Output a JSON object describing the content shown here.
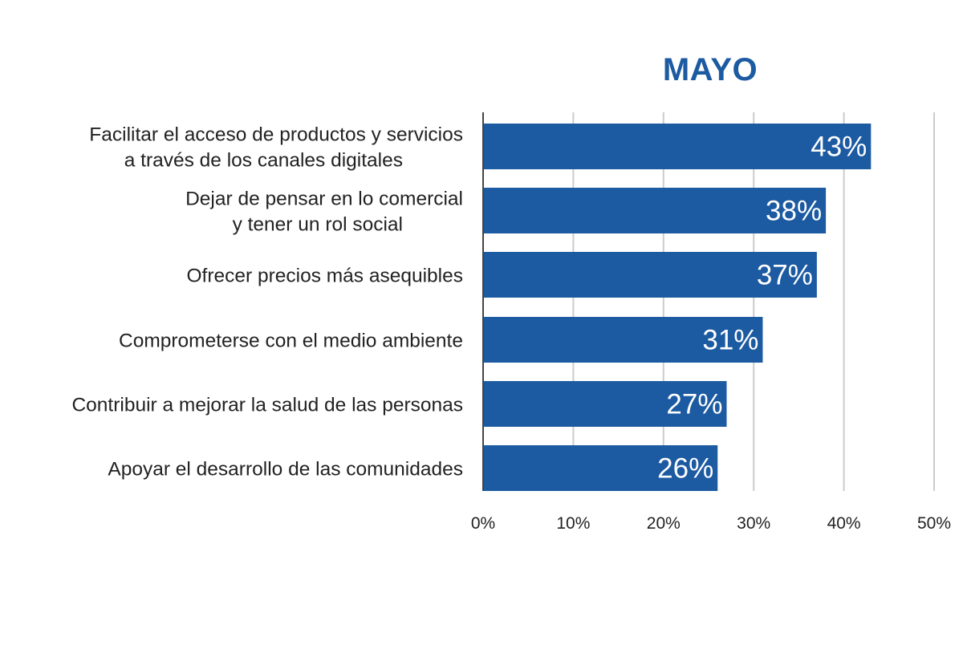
{
  "chart_data": {
    "type": "bar",
    "orientation": "horizontal",
    "title": "MAYO",
    "categories": [
      [
        "Facilitar el acceso de productos y servicios",
        "a través de los canales digitales"
      ],
      [
        "Dejar de pensar en lo comercial",
        "y tener un rol social"
      ],
      [
        "Ofrecer precios más asequibles"
      ],
      [
        "Comprometerse con el medio ambiente"
      ],
      [
        "Contribuir a mejorar la salud de las personas"
      ],
      [
        "Apoyar el desarrollo de las comunidades"
      ]
    ],
    "values": [
      43,
      38,
      37,
      31,
      27,
      26
    ],
    "value_labels": [
      "43%",
      "38%",
      "37%",
      "31%",
      "27%",
      "26%"
    ],
    "xlim": [
      0,
      50
    ],
    "x_ticks": [
      0,
      10,
      20,
      30,
      40,
      50
    ],
    "x_tick_labels": [
      "0%",
      "10%",
      "20%",
      "30%",
      "40%",
      "50%"
    ],
    "xlabel": "",
    "ylabel": "",
    "grid": "vertical",
    "legend": "none",
    "colors": {
      "bar": "#1c5aa1",
      "title": "#1c5aa1",
      "grid": "#cccccc",
      "axis": "#444444",
      "text": "#222222",
      "value_text": "#ffffff"
    }
  }
}
